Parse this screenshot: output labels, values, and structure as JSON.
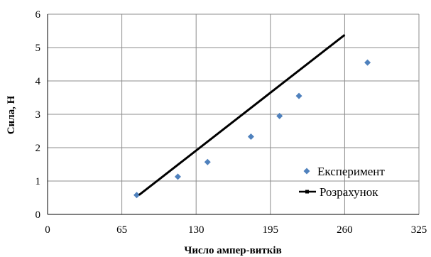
{
  "chart_data": {
    "type": "scatter",
    "title": "",
    "xlabel": "Число ампер-витків",
    "ylabel": "Сила, Н",
    "xlim": [
      0,
      325
    ],
    "ylim": [
      0,
      6
    ],
    "x_ticks": [
      0,
      65,
      130,
      195,
      260,
      325
    ],
    "y_ticks": [
      0,
      1,
      2,
      3,
      4,
      5,
      6
    ],
    "grid": true,
    "legend_position": "bottom-right",
    "series": [
      {
        "name": "Експеримент",
        "type": "scatter",
        "marker": "diamond",
        "color": "#4f81bd",
        "points": [
          {
            "x": 78,
            "y": 0.58
          },
          {
            "x": 114,
            "y": 1.13
          },
          {
            "x": 140,
            "y": 1.57
          },
          {
            "x": 178,
            "y": 2.33
          },
          {
            "x": 203,
            "y": 2.95
          },
          {
            "x": 220,
            "y": 3.55
          },
          {
            "x": 280,
            "y": 4.55
          }
        ]
      },
      {
        "name": "Розрахунок",
        "type": "line",
        "color": "#000000",
        "points": [
          {
            "x": 80,
            "y": 0.58
          },
          {
            "x": 260,
            "y": 5.38
          }
        ]
      }
    ]
  }
}
